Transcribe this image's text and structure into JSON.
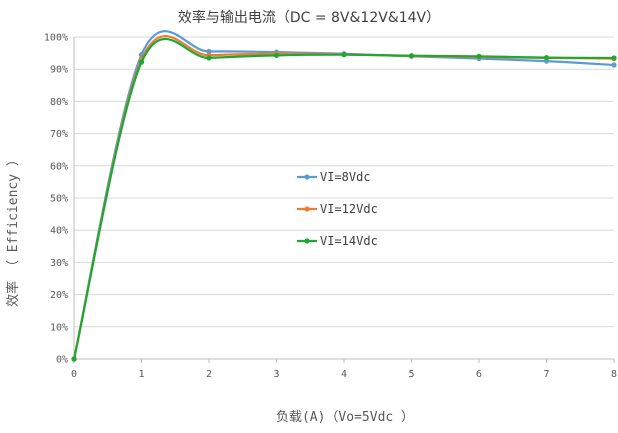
{
  "chart_data": {
    "type": "line",
    "title": "效率与输出电流（DC = 8V&12V&14V）",
    "xlabel": "负载(A)（Vo=5Vdc ）",
    "ylabel": "效率 （ Efficiency ）",
    "x": [
      0,
      1,
      2,
      3,
      4,
      5,
      6,
      7,
      8
    ],
    "xlim": [
      0,
      8
    ],
    "ylim": [
      0,
      100
    ],
    "x_ticks": [
      "0",
      "1",
      "2",
      "3",
      "4",
      "5",
      "6",
      "7",
      "8"
    ],
    "y_ticks": [
      "0%",
      "10%",
      "20%",
      "30%",
      "40%",
      "50%",
      "60%",
      "70%",
      "80%",
      "90%",
      "100%"
    ],
    "grid": true,
    "legend_position": "center",
    "series": [
      {
        "name": "VI=8Vdc",
        "color": "#5b9bd5",
        "values": [
          0,
          94.5,
          95.5,
          95.3,
          94.8,
          94.0,
          93.3,
          92.5,
          91.3
        ]
      },
      {
        "name": "VI=12Vdc",
        "color": "#ed7d31",
        "values": [
          0,
          93.0,
          94.3,
          94.8,
          94.6,
          94.1,
          93.8,
          93.5,
          93.3
        ]
      },
      {
        "name": "VI=14Vdc",
        "color": "#1fa831",
        "values": [
          0,
          92.2,
          93.5,
          94.3,
          94.5,
          94.2,
          94.0,
          93.6,
          93.5
        ]
      }
    ]
  }
}
